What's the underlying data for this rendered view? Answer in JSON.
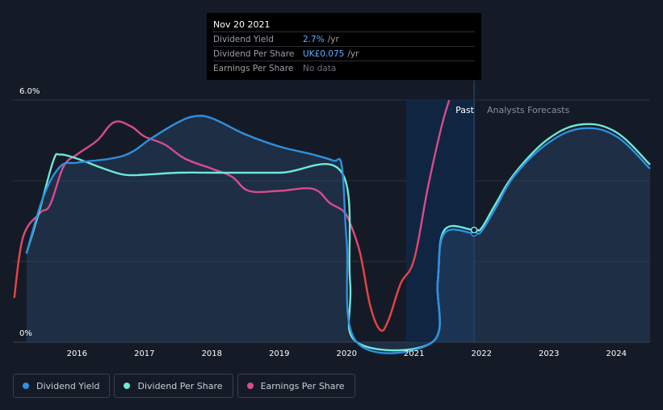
{
  "tooltip": {
    "date": "Nov 20 2021",
    "rows": [
      {
        "label": "Dividend Yield",
        "value": "2.7%",
        "unit": "/yr"
      },
      {
        "label": "Dividend Per Share",
        "value": "UK£0.075",
        "unit": "/yr"
      },
      {
        "label": "Earnings Per Share",
        "value": "No data"
      }
    ]
  },
  "colors": {
    "background": "#151b26",
    "dividend_yield": "#2f8fe0",
    "dividend_per_share": "#6ee8d8",
    "earnings_per_share": "#d94b8c",
    "eps_low": "#e84545",
    "past_band": "#0f2747",
    "grid": "#2b323d"
  },
  "legend": [
    {
      "label": "Dividend Yield",
      "color": "#2f8fe0"
    },
    {
      "label": "Dividend Per Share",
      "color": "#6ee8d8"
    },
    {
      "label": "Earnings Per Share",
      "color": "#d94b8c"
    }
  ],
  "chart_data": {
    "type": "line",
    "y_labels": [
      "6.0%",
      "0%"
    ],
    "ylim": [
      0,
      6
    ],
    "xlim": [
      2015.05,
      2024.5
    ],
    "x_ticks": [
      2016,
      2017,
      2018,
      2019,
      2020,
      2021,
      2022,
      2023,
      2024
    ],
    "past_label": "Past",
    "forecast_label": "Analysts Forecasts",
    "past_band": [
      2020.88,
      2021.89
    ],
    "grid": true,
    "series": [
      {
        "name": "Dividend Yield",
        "key": "dividend_yield",
        "points": [
          [
            2015.25,
            2.2
          ],
          [
            2015.5,
            3.6
          ],
          [
            2015.75,
            4.35
          ],
          [
            2016.0,
            4.45
          ],
          [
            2016.5,
            4.55
          ],
          [
            2016.8,
            4.7
          ],
          [
            2017.1,
            5.05
          ],
          [
            2017.5,
            5.45
          ],
          [
            2017.75,
            5.6
          ],
          [
            2018.0,
            5.55
          ],
          [
            2018.5,
            5.15
          ],
          [
            2019.0,
            4.85
          ],
          [
            2019.5,
            4.65
          ],
          [
            2019.8,
            4.5
          ],
          [
            2019.93,
            4.35
          ],
          [
            2020.0,
            2.5
          ],
          [
            2020.15,
            0.0
          ],
          [
            2021.27,
            0.0
          ],
          [
            2021.35,
            1.5
          ],
          [
            2021.45,
            2.7
          ],
          [
            2021.89,
            2.7
          ],
          [
            2022.0,
            2.75
          ],
          [
            2022.2,
            3.3
          ],
          [
            2022.5,
            4.15
          ],
          [
            2023.0,
            4.95
          ],
          [
            2023.5,
            5.3
          ],
          [
            2024.0,
            5.1
          ],
          [
            2024.5,
            4.3
          ]
        ]
      },
      {
        "name": "Dividend Per Share",
        "key": "dividend_per_share",
        "points": [
          [
            2015.25,
            2.2
          ],
          [
            2015.45,
            3.3
          ],
          [
            2015.65,
            4.5
          ],
          [
            2015.75,
            4.65
          ],
          [
            2016.0,
            4.55
          ],
          [
            2016.4,
            4.3
          ],
          [
            2016.7,
            4.15
          ],
          [
            2017.0,
            4.15
          ],
          [
            2017.5,
            4.2
          ],
          [
            2018.0,
            4.2
          ],
          [
            2019.0,
            4.2
          ],
          [
            2019.93,
            4.2
          ],
          [
            2020.05,
            1.5
          ],
          [
            2020.15,
            0.0
          ],
          [
            2021.27,
            0.0
          ],
          [
            2021.35,
            1.5
          ],
          [
            2021.45,
            2.78
          ],
          [
            2021.89,
            2.78
          ],
          [
            2022.0,
            2.83
          ],
          [
            2022.2,
            3.4
          ],
          [
            2022.5,
            4.2
          ],
          [
            2023.0,
            5.05
          ],
          [
            2023.5,
            5.4
          ],
          [
            2024.0,
            5.2
          ],
          [
            2024.5,
            4.4
          ]
        ]
      },
      {
        "name": "Earnings Per Share",
        "key": "earnings_per_share",
        "points": [
          [
            2015.07,
            1.1
          ],
          [
            2015.2,
            2.6
          ],
          [
            2015.45,
            3.2
          ],
          [
            2015.6,
            3.4
          ],
          [
            2015.8,
            4.35
          ],
          [
            2016.0,
            4.65
          ],
          [
            2016.3,
            5.0
          ],
          [
            2016.55,
            5.45
          ],
          [
            2016.8,
            5.35
          ],
          [
            2017.0,
            5.1
          ],
          [
            2017.3,
            4.9
          ],
          [
            2017.6,
            4.55
          ],
          [
            2018.0,
            4.3
          ],
          [
            2018.3,
            4.1
          ],
          [
            2018.55,
            3.75
          ],
          [
            2019.0,
            3.75
          ],
          [
            2019.5,
            3.8
          ],
          [
            2019.75,
            3.45
          ],
          [
            2019.95,
            3.25
          ],
          [
            2020.05,
            2.95
          ],
          [
            2020.2,
            2.2
          ],
          [
            2020.35,
            0.9
          ],
          [
            2020.5,
            0.3
          ],
          [
            2020.62,
            0.55
          ],
          [
            2020.8,
            1.45
          ],
          [
            2021.0,
            2.05
          ],
          [
            2021.2,
            3.8
          ],
          [
            2021.4,
            5.3
          ],
          [
            2021.52,
            6.0
          ]
        ]
      }
    ]
  }
}
